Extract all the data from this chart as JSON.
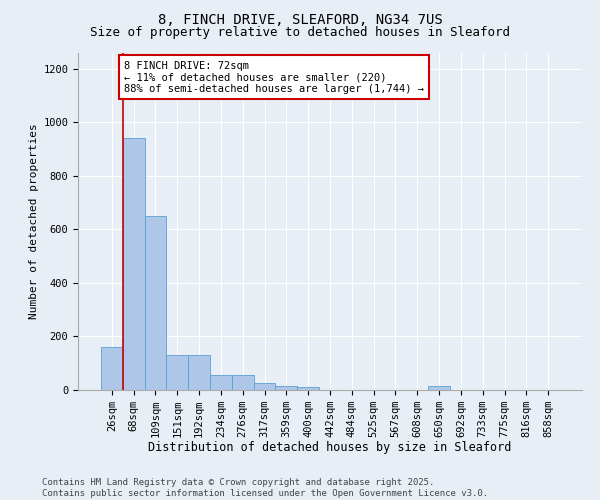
{
  "title1": "8, FINCH DRIVE, SLEAFORD, NG34 7US",
  "title2": "Size of property relative to detached houses in Sleaford",
  "xlabel": "Distribution of detached houses by size in Sleaford",
  "ylabel": "Number of detached properties",
  "categories": [
    "26sqm",
    "68sqm",
    "109sqm",
    "151sqm",
    "192sqm",
    "234sqm",
    "276sqm",
    "317sqm",
    "359sqm",
    "400sqm",
    "442sqm",
    "484sqm",
    "525sqm",
    "567sqm",
    "608sqm",
    "650sqm",
    "692sqm",
    "733sqm",
    "775sqm",
    "816sqm",
    "858sqm"
  ],
  "values": [
    160,
    940,
    650,
    130,
    130,
    55,
    55,
    25,
    15,
    10,
    0,
    0,
    0,
    0,
    0,
    15,
    0,
    0,
    0,
    0,
    0
  ],
  "bar_color": "#aec6e8",
  "bar_edge_color": "#5a9fd4",
  "vline_color": "#cc0000",
  "annotation_text": "8 FINCH DRIVE: 72sqm\n← 11% of detached houses are smaller (220)\n88% of semi-detached houses are larger (1,744) →",
  "annotation_box_color": "#ffffff",
  "annotation_box_edge_color": "#cc0000",
  "ylim": [
    0,
    1260
  ],
  "yticks": [
    0,
    200,
    400,
    600,
    800,
    1000,
    1200
  ],
  "footer_text": "Contains HM Land Registry data © Crown copyright and database right 2025.\nContains public sector information licensed under the Open Government Licence v3.0.",
  "background_color": "#e8eef5",
  "title1_fontsize": 10,
  "title2_fontsize": 9,
  "xlabel_fontsize": 8.5,
  "ylabel_fontsize": 8,
  "tick_fontsize": 7.5,
  "footer_fontsize": 6.5,
  "annotation_fontsize": 7.5
}
